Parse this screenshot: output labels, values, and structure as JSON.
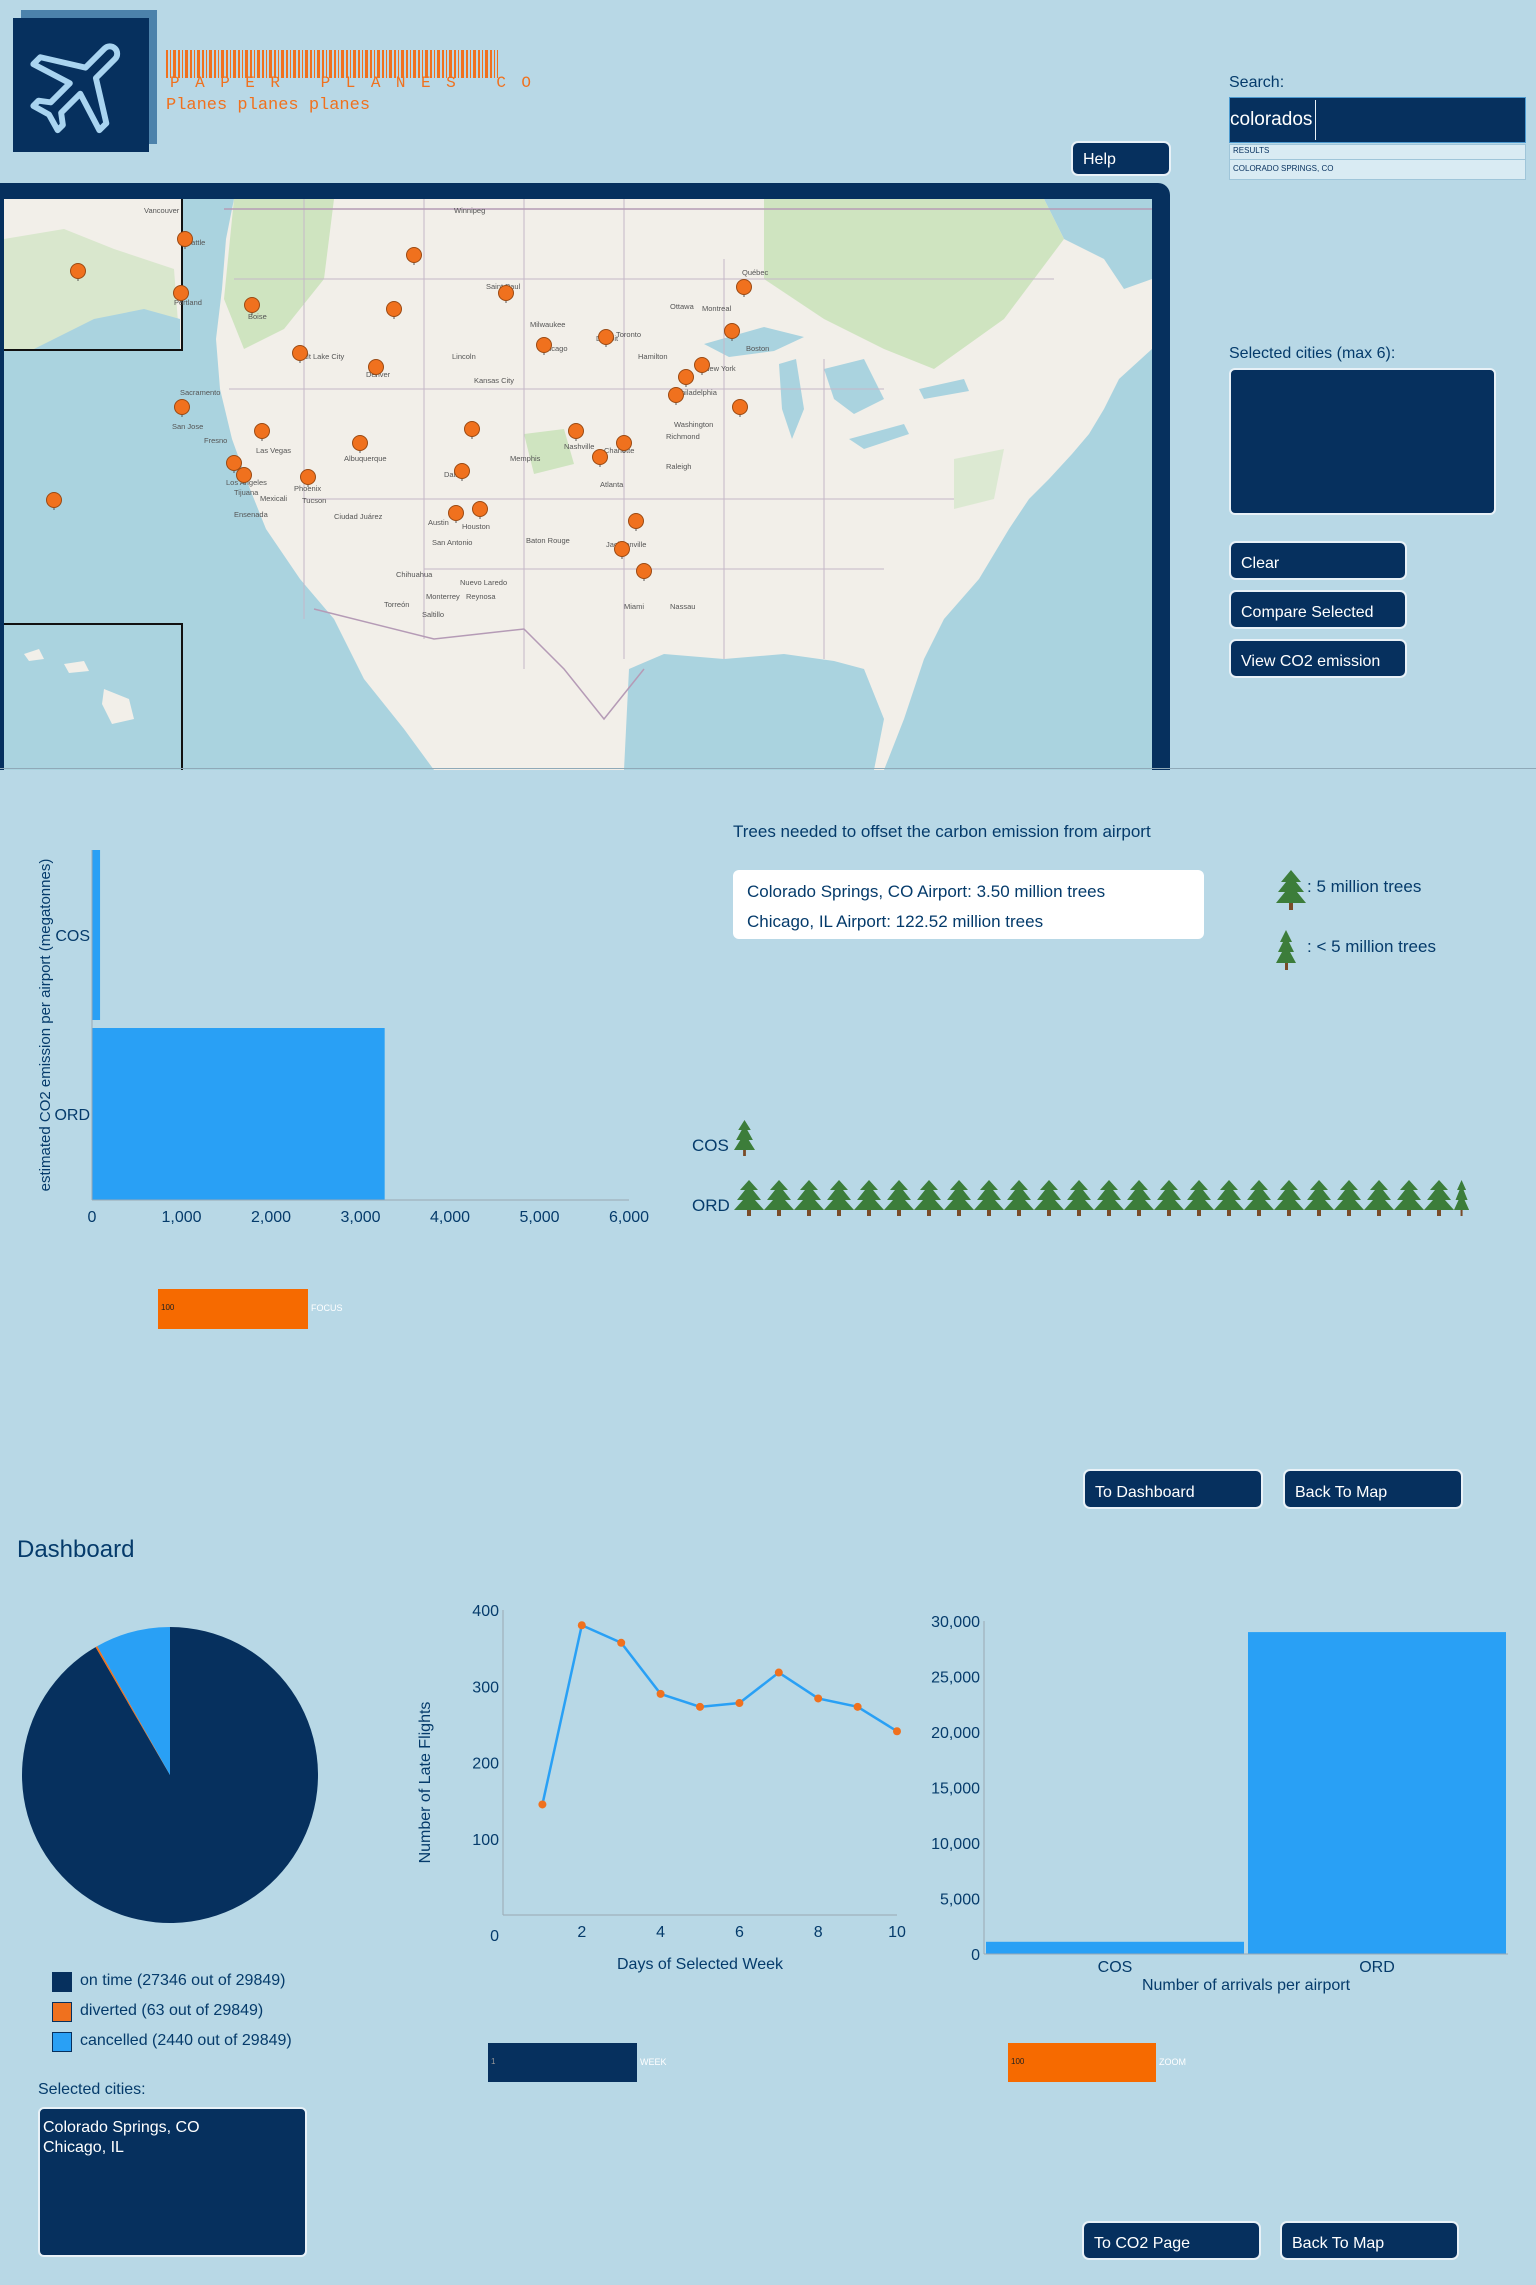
{
  "header": {
    "brand": "PAPER PLANES CO",
    "tagline": "Planes planes planes",
    "help_label": "Help"
  },
  "search": {
    "label": "Search:",
    "value": "colorados",
    "results_header": "RESULTS",
    "results": [
      "COLORADO SPRINGS, CO"
    ]
  },
  "sidebar": {
    "selected_label": "Selected cities (max 6):",
    "clear_label": "Clear",
    "compare_label": "Compare Selected",
    "co2_label": "View CO2 emission"
  },
  "map": {
    "labels": [
      "Vancouver",
      "Seattle",
      "Portland",
      "Boise",
      "Salt Lake City",
      "Sacramento",
      "San Jose",
      "Fresno",
      "Las Vegas",
      "Los Angeles",
      "Tijuana",
      "Mexicali",
      "Phoenix",
      "Tucson",
      "Ensenada",
      "Denver",
      "Albuquerque",
      "Ciudad Juárez",
      "Winnipeg",
      "Saint Paul",
      "Milwaukee",
      "Chicago",
      "Detroit",
      "Toronto",
      "Hamilton",
      "Ottawa",
      "Montreal",
      "Québec",
      "Boston",
      "New York",
      "Philadelphia",
      "Washington",
      "Richmond",
      "Raleigh",
      "Charlotte",
      "Atlanta",
      "Nashville",
      "Memphis",
      "Dallas",
      "Austin",
      "Houston",
      "San Antonio",
      "Baton Rouge",
      "Jacksonville",
      "Miami",
      "Nassau",
      "Kansas City",
      "Lincoln",
      "Monterrey",
      "Nuevo Laredo",
      "Torreón",
      "Saltillo",
      "Reynosa",
      "Chihuahua"
    ],
    "pin_color": "#f0711e"
  },
  "co2": {
    "title": "Trees needed to offset the carbon emission from airport",
    "info_lines": [
      "Colorado Springs, CO Airport: 3.50 million trees",
      "Chicago, IL Airport: 122.52 million trees"
    ],
    "legend_big": ": 5 million trees",
    "legend_small": ": < 5 million trees",
    "brush_value": "100",
    "brush_label": "FOCUS",
    "to_dashboard_label": "To Dashboard",
    "back_label": "Back To Map"
  },
  "co2_chart": {
    "type": "bar",
    "orientation": "horizontal",
    "categories": [
      "COS",
      "ORD"
    ],
    "values": [
      90,
      3270
    ],
    "ylabel": "estimated CO2 emission per airport (megatonnes)",
    "xlim": [
      0,
      6000
    ],
    "xticks": [
      "0",
      "1,000",
      "2,000",
      "3,000",
      "4,000",
      "5,000",
      "6,000"
    ],
    "color": "#29a0f5"
  },
  "trees_chart": {
    "type": "pictograph",
    "categories": [
      "COS",
      "ORD"
    ],
    "trees_millions": [
      3.5,
      122.52
    ],
    "unit_millions": 5
  },
  "dashboard": {
    "title": "Dashboard",
    "legend": [
      {
        "label": "on time (27346 out of 29849)",
        "color": "#06305e"
      },
      {
        "label": "diverted (63 out of 29849)",
        "color": "#f0711e"
      },
      {
        "label": "cancelled (2440 out of 29849)",
        "color": "#29a0f5"
      }
    ],
    "selected_label": "Selected cities:",
    "selected_cities": [
      "Colorado Springs, CO",
      "Chicago, IL"
    ],
    "line_brush_value": "1",
    "line_brush_label": "WEEK",
    "bar_brush_value": "100",
    "bar_brush_label": "ZOOM",
    "to_co2_label": "To CO2 Page",
    "back_label": "Back To Map"
  },
  "pie_chart": {
    "type": "pie",
    "slices": [
      {
        "name": "on time",
        "value": 27346,
        "color": "#06305e"
      },
      {
        "name": "diverted",
        "value": 63,
        "color": "#f0711e"
      },
      {
        "name": "cancelled",
        "value": 2440,
        "color": "#29a0f5"
      }
    ]
  },
  "line_chart": {
    "type": "line",
    "x": [
      1,
      2,
      3,
      4,
      5,
      6,
      7,
      8,
      9,
      10
    ],
    "y": [
      145,
      380,
      357,
      290,
      273,
      278,
      318,
      284,
      273,
      241
    ],
    "xlabel": "Days of Selected Week",
    "ylabel": "Number of Late Flights",
    "xlim": [
      0,
      10
    ],
    "ylim": [
      0,
      400
    ],
    "xticks": [
      2,
      4,
      6,
      8,
      10
    ],
    "yticks": [
      100,
      200,
      300,
      400
    ],
    "line_color": "#29a0f5",
    "point_color": "#f0711e"
  },
  "arrivals_chart": {
    "type": "bar",
    "categories": [
      "COS",
      "ORD"
    ],
    "values": [
      1100,
      29000
    ],
    "xlabel": "Number of arrivals per airport",
    "ylim": [
      0,
      30000
    ],
    "yticks": [
      "0",
      "5,000",
      "10,000",
      "15,000",
      "20,000",
      "25,000",
      "30,000"
    ],
    "color": "#29a0f5"
  }
}
